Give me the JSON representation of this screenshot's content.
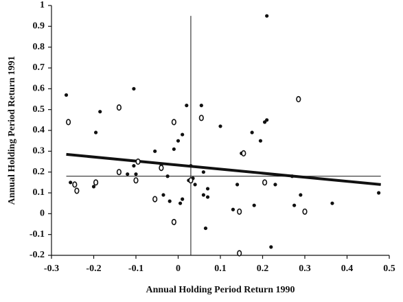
{
  "chart_data": {
    "type": "scatter",
    "x_label": "Annual Holding Period Return 1990",
    "y_label": "Annual Holding Period Return 1991",
    "xlim": [
      -0.3,
      0.5
    ],
    "xticks": [
      -0.3,
      -0.2,
      -0.1,
      0,
      0.1,
      0.2,
      0.3,
      0.4,
      0.5
    ],
    "ylim": [
      -0.2,
      1
    ],
    "yticks": [
      -0.2,
      -0.1,
      0,
      0.1,
      0.2,
      0.3,
      0.4,
      0.5,
      0.6,
      0.7,
      0.8,
      0.9,
      1
    ],
    "series": [
      {
        "marker": "filled",
        "color": "#111",
        "x": [
          -0.265,
          -0.105,
          -0.185,
          -0.195,
          -0.255,
          -0.2,
          -0.12,
          -0.105,
          -0.1,
          -0.055,
          -0.04,
          -0.035,
          -0.025,
          -0.02,
          -0.01,
          0.0,
          0.005,
          0.01,
          0.01,
          0.02,
          0.025,
          0.03,
          0.035,
          0.04,
          0.055,
          0.06,
          0.065,
          0.07,
          0.07,
          0.1,
          0.13,
          0.14,
          0.15,
          0.175,
          0.18,
          0.195,
          0.205,
          0.21,
          0.21,
          0.22,
          0.23,
          0.27,
          0.275,
          0.29,
          0.365,
          0.475,
          0.06
        ],
        "y": [
          0.57,
          0.6,
          0.49,
          0.39,
          0.15,
          0.13,
          0.19,
          0.23,
          0.19,
          0.3,
          0.23,
          0.09,
          0.18,
          0.06,
          0.31,
          0.35,
          0.05,
          0.07,
          0.38,
          0.52,
          0.16,
          0.23,
          0.17,
          0.14,
          0.52,
          0.09,
          -0.07,
          0.12,
          0.08,
          0.42,
          0.02,
          0.14,
          0.29,
          0.39,
          0.04,
          0.35,
          0.44,
          0.45,
          0.95,
          -0.16,
          0.14,
          0.18,
          0.04,
          0.09,
          0.05,
          0.1,
          0.2
        ]
      },
      {
        "marker": "open",
        "color": "#111",
        "x": [
          -0.26,
          -0.245,
          -0.24,
          -0.195,
          -0.14,
          -0.14,
          -0.1,
          -0.095,
          -0.04,
          -0.055,
          -0.01,
          0.055,
          0.03,
          -0.01,
          0.145,
          0.145,
          0.205,
          0.285,
          0.3,
          0.155
        ],
        "y": [
          0.44,
          0.14,
          0.11,
          0.15,
          0.51,
          0.2,
          0.16,
          0.25,
          0.22,
          0.07,
          0.44,
          0.46,
          0.16,
          -0.04,
          0.01,
          -0.19,
          0.15,
          0.55,
          0.01,
          0.29
        ]
      }
    ],
    "fit_line": {
      "x": [
        -0.265,
        0.48
      ],
      "y": [
        0.285,
        0.14
      ]
    },
    "mean_y": 0.18,
    "mean_x": 0.03
  }
}
